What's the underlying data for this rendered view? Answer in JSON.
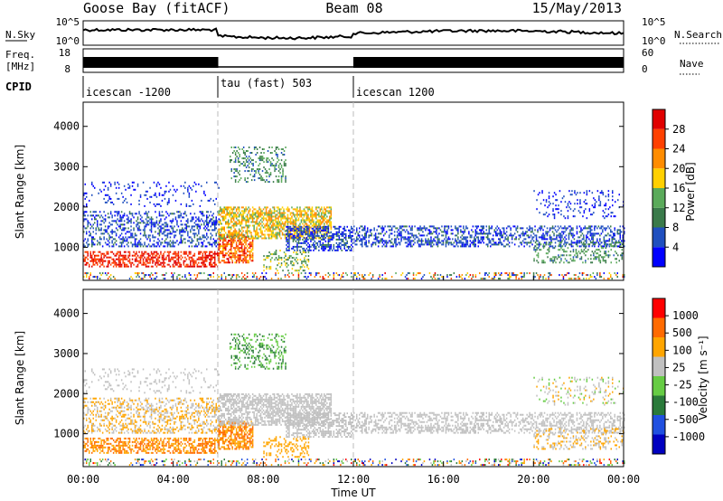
{
  "header": {
    "station": "Goose Bay (fitACF)",
    "beam": "Beam 08",
    "date": "15/May/2013"
  },
  "top_panels": {
    "nsky_label": "N.Sky",
    "nsky_ticks": [
      "10^5",
      "10^0"
    ],
    "nsearch_label": "N.Search",
    "nsearch_ticks": [
      "10^5",
      "10^0"
    ],
    "freq_label_1": "Freq.",
    "freq_label_2": "[MHz]",
    "freq_ticks": [
      "18",
      "8"
    ],
    "nave_label": "Nave",
    "nave_ticks": [
      "60",
      "0"
    ],
    "cpid_label": "CPID",
    "cpid_segments": [
      {
        "label": "icescan -1200",
        "start": "00:00",
        "end": "06:00"
      },
      {
        "label": "tau (fast) 503",
        "start": "06:00",
        "end": "12:00"
      },
      {
        "label": "icescan 1200",
        "start": "12:00",
        "end": "24:00"
      }
    ]
  },
  "colors": {
    "power": [
      "#0000ff",
      "#1f4fbf",
      "#3a7a4a",
      "#5aaa5a",
      "#ffd000",
      "#ff8c00",
      "#ff4000",
      "#e00000"
    ],
    "velocity": [
      "#0000c0",
      "#2050e0",
      "#2a7a3a",
      "#66cc44",
      "#c0c0c0",
      "#ffa500",
      "#ff6a00",
      "#ff0000"
    ]
  },
  "chart_data": [
    {
      "type": "heatmap",
      "name": "power",
      "ylabel": "Slant Range [km]",
      "yticks": [
        "1000",
        "2000",
        "3000",
        "4000"
      ],
      "ylim": [
        180,
        4600
      ],
      "xlim": [
        "00:00",
        "24:00"
      ],
      "colorbar_label": "Power [dB]",
      "colorbar_ticks": [
        "4",
        "8",
        "12",
        "16",
        "20",
        "24",
        "28"
      ],
      "colorbar_range": [
        0,
        30
      ]
    },
    {
      "type": "heatmap",
      "name": "velocity",
      "ylabel": "Slant Range [km]",
      "yticks": [
        "1000",
        "2000",
        "3000",
        "4000"
      ],
      "ylim": [
        180,
        4600
      ],
      "xlabel": "Time UT",
      "xticks": [
        "00:00",
        "04:00",
        "08:00",
        "12:00",
        "16:00",
        "20:00",
        "00:00"
      ],
      "colorbar_label": "Velocity [m s⁻¹]",
      "colorbar_ticks": [
        "1000",
        "500",
        "100",
        "25",
        "-25",
        "-100",
        "-500",
        "-1000"
      ]
    }
  ]
}
